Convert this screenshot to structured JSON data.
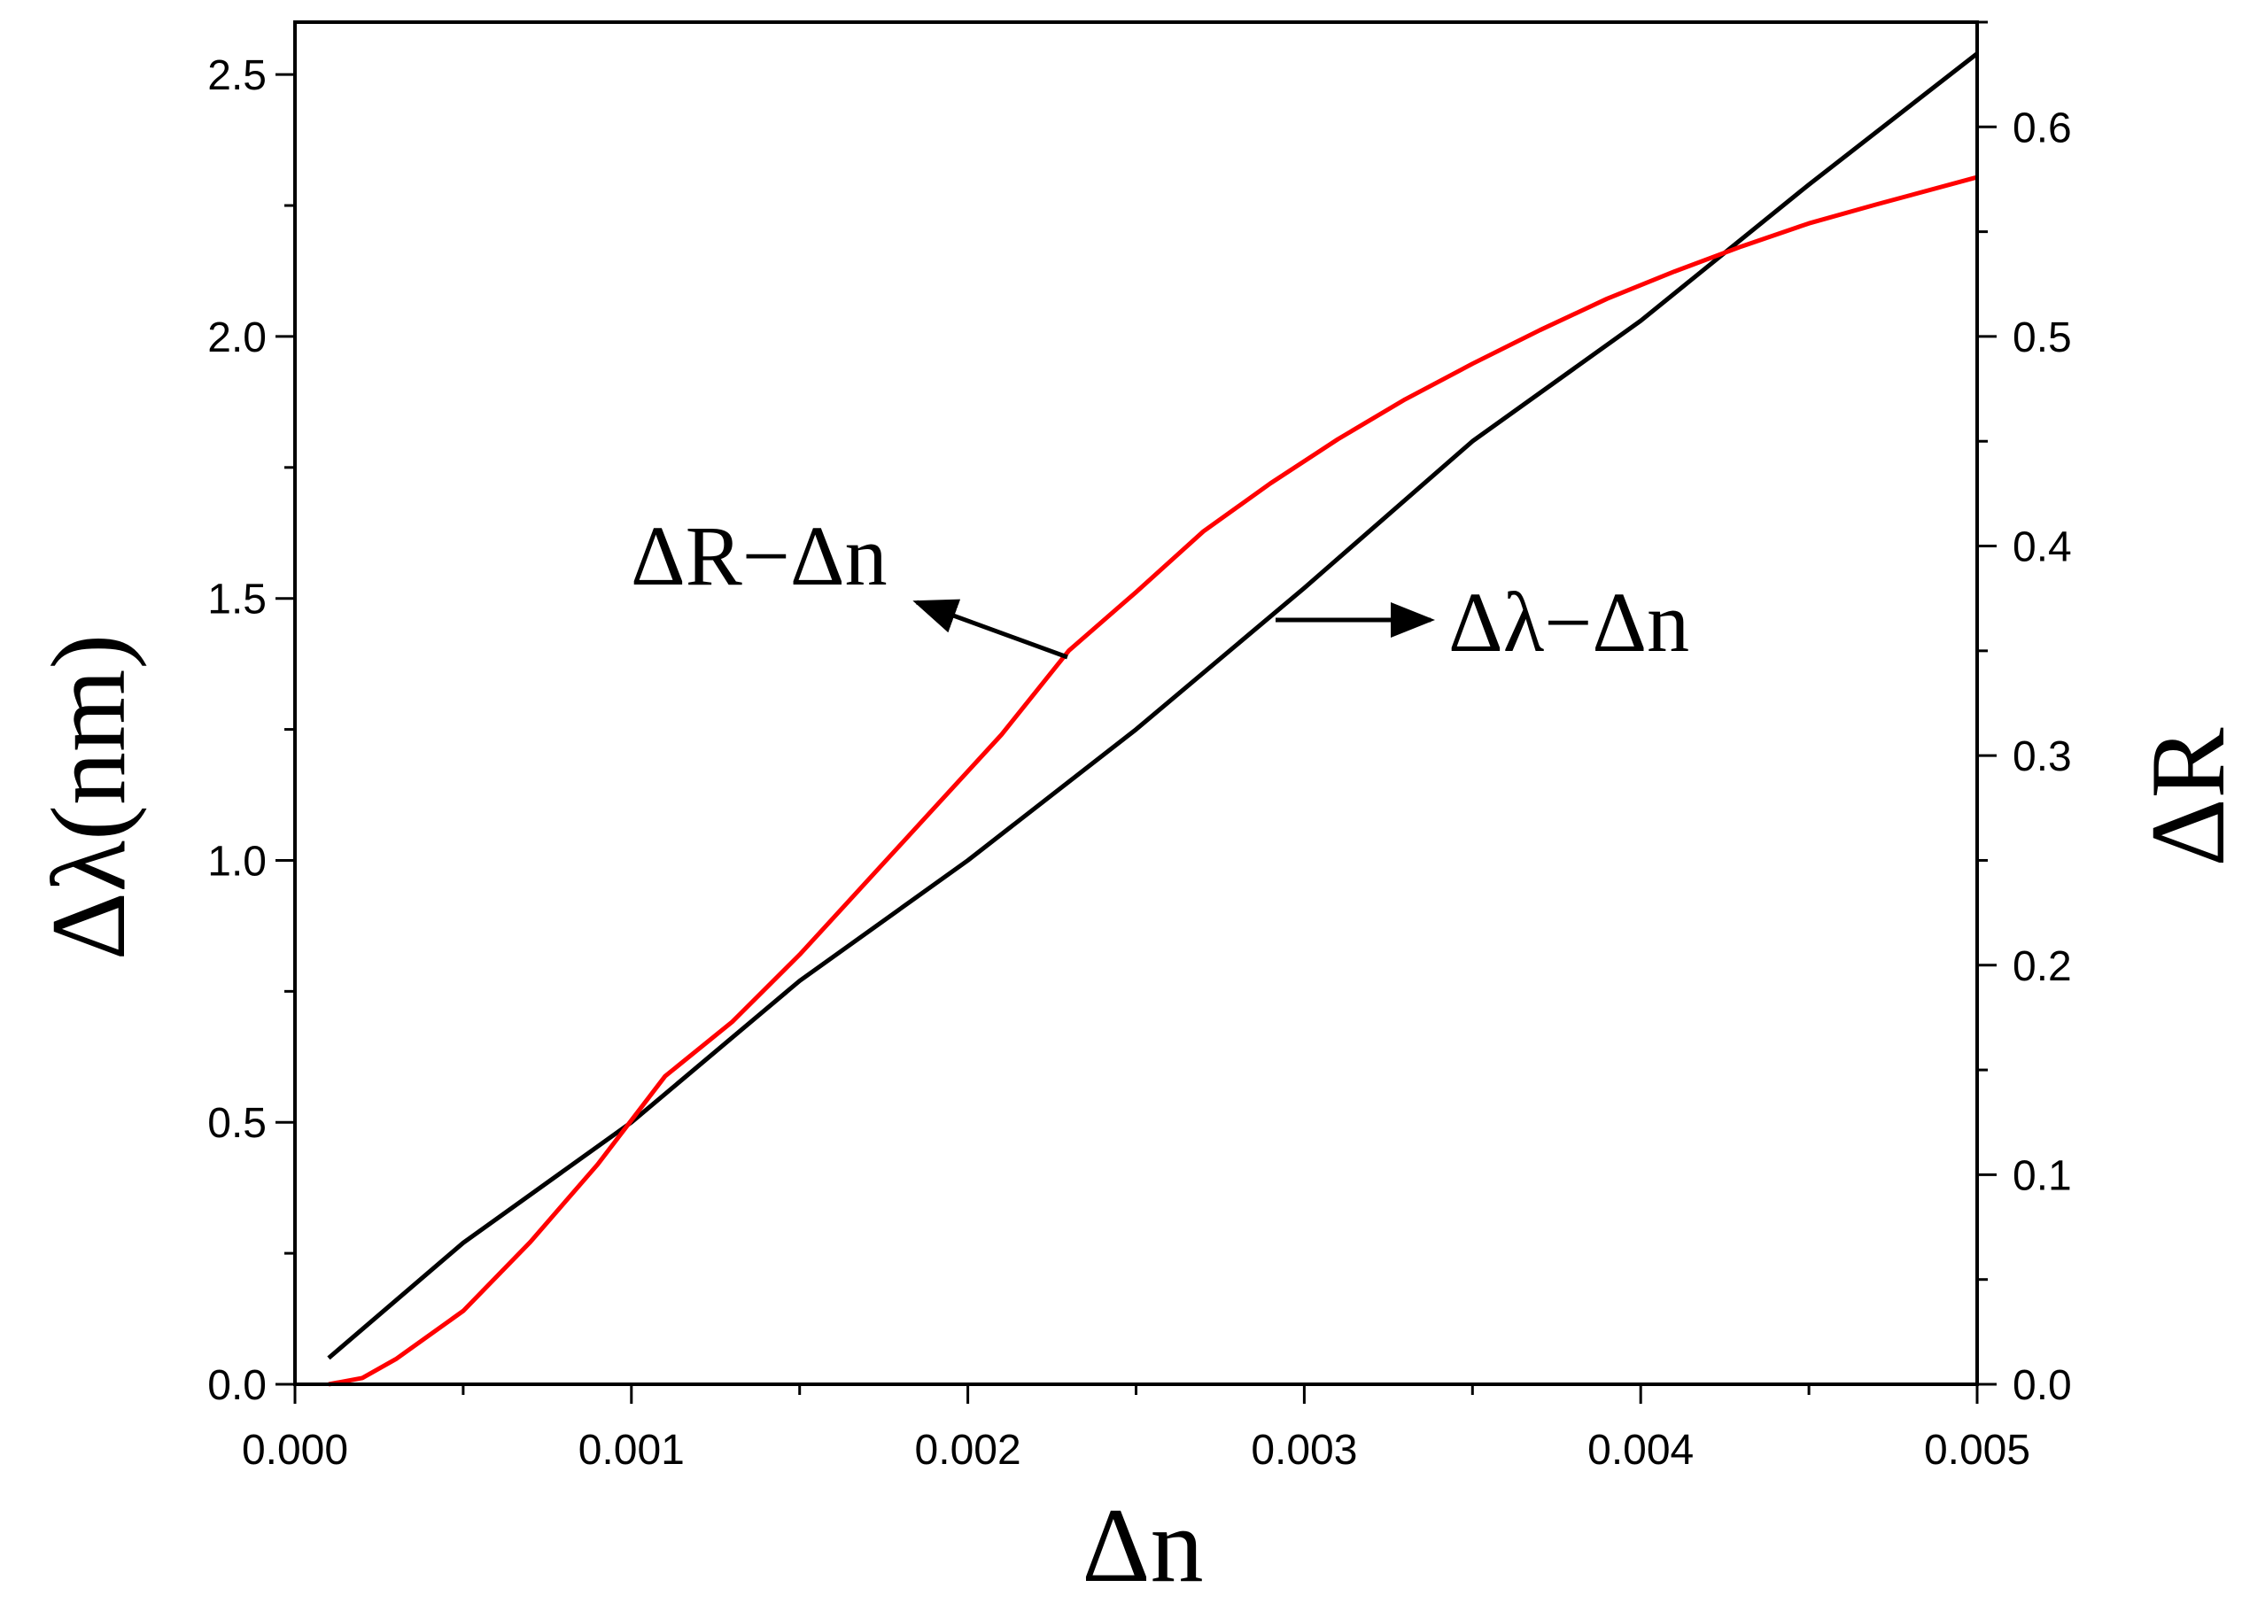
{
  "chart_data": {
    "type": "line",
    "xlabel": "Δn",
    "ylabel_left": "Δλ(nm)",
    "ylabel_right": "ΔR",
    "xlim": [
      0.0,
      0.005
    ],
    "ylim_left": [
      0.0,
      2.6
    ],
    "ylim_right": [
      0.0,
      0.65
    ],
    "x_ticks": [
      "0.000",
      "0.001",
      "0.002",
      "0.003",
      "0.004",
      "0.005"
    ],
    "y_left_ticks": [
      "0.0",
      "0.5",
      "1.0",
      "1.5",
      "2.0",
      "2.5"
    ],
    "y_right_ticks": [
      "0.0",
      "0.1",
      "0.2",
      "0.3",
      "0.4",
      "0.5",
      "0.6"
    ],
    "grid": false,
    "series": [
      {
        "name": "Δλ-Δn",
        "axis": "left",
        "color": "#000000",
        "points": [
          [
            0.0001,
            0.05
          ],
          [
            0.0005,
            0.27
          ],
          [
            0.001,
            0.5
          ],
          [
            0.0015,
            0.77
          ],
          [
            0.002,
            1.0
          ],
          [
            0.0025,
            1.25
          ],
          [
            0.003,
            1.52
          ],
          [
            0.0035,
            1.8
          ],
          [
            0.004,
            2.03
          ],
          [
            0.0045,
            2.29
          ],
          [
            0.005,
            2.54
          ]
        ]
      },
      {
        "name": "ΔR-Δn",
        "axis": "right",
        "color": "#ff0000",
        "points": [
          [
            0.0001,
            0.0
          ],
          [
            0.0002,
            0.003
          ],
          [
            0.0003,
            0.012
          ],
          [
            0.0005,
            0.035
          ],
          [
            0.0007,
            0.068
          ],
          [
            0.0009,
            0.105
          ],
          [
            0.0011,
            0.147
          ],
          [
            0.0013,
            0.173
          ],
          [
            0.0015,
            0.205
          ],
          [
            0.0017,
            0.24
          ],
          [
            0.0019,
            0.275
          ],
          [
            0.0021,
            0.31
          ],
          [
            0.0023,
            0.35
          ],
          [
            0.0025,
            0.378
          ],
          [
            0.0027,
            0.407
          ],
          [
            0.0029,
            0.43
          ],
          [
            0.0031,
            0.451
          ],
          [
            0.0033,
            0.47
          ],
          [
            0.0035,
            0.487
          ],
          [
            0.0037,
            0.503
          ],
          [
            0.0039,
            0.518
          ],
          [
            0.0041,
            0.531
          ],
          [
            0.0043,
            0.543
          ],
          [
            0.0045,
            0.554
          ],
          [
            0.0047,
            0.563
          ],
          [
            0.005,
            0.576
          ]
        ]
      }
    ],
    "annotations": [
      {
        "text": "ΔR−Δn",
        "arrow_to_series": "ΔR-Δn"
      },
      {
        "text": "Δλ−Δn",
        "arrow_to_series": "Δλ-Δn"
      }
    ]
  }
}
